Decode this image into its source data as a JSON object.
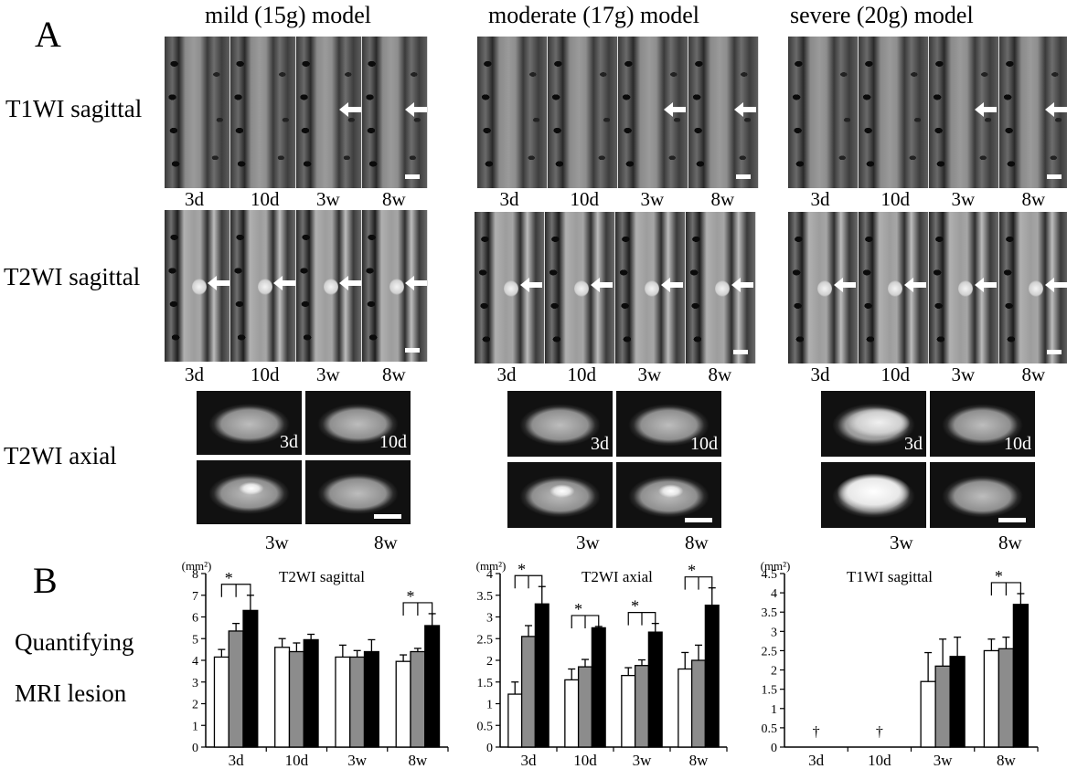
{
  "panel_a_label": "A",
  "panel_b_label": "B",
  "models": [
    {
      "title": "mild (15g) model"
    },
    {
      "title": "moderate (17g) model"
    },
    {
      "title": "severe (20g) model"
    }
  ],
  "row_labels": {
    "t1_sag": "T1WI sagittal",
    "t2_sag": "T2WI sagittal",
    "t2_ax": "T2WI axial"
  },
  "timepoints": [
    "3d",
    "10d",
    "3w",
    "8w"
  ],
  "quant_label_1": "Quantifying",
  "quant_label_2": "MRI lesion",
  "chart_data": [
    {
      "type": "bar",
      "title": "T2WI sagittal",
      "unit": "(mm²)",
      "categories": [
        "3d",
        "10d",
        "3w",
        "8w"
      ],
      "ylim": [
        0,
        8
      ],
      "yticks": [
        0,
        1,
        2,
        3,
        4,
        5,
        6,
        7,
        8
      ],
      "series": [
        {
          "fill": "#ffffff",
          "values": [
            4.15,
            4.6,
            4.15,
            3.95
          ],
          "err": [
            0.35,
            0.4,
            0.55,
            0.3
          ]
        },
        {
          "fill": "#8c8c8c",
          "values": [
            5.35,
            4.4,
            4.15,
            4.4
          ],
          "err": [
            0.35,
            0.4,
            0.3,
            0.15
          ]
        },
        {
          "fill": "#000000",
          "values": [
            6.3,
            4.95,
            4.4,
            5.6
          ],
          "err": [
            0.7,
            0.25,
            0.55,
            0.55
          ]
        }
      ],
      "significance": [
        {
          "category": "3d",
          "mark": "*"
        },
        {
          "category": "8w",
          "mark": "*"
        }
      ]
    },
    {
      "type": "bar",
      "title": "T2WI axial",
      "unit": "(mm²)",
      "categories": [
        "3d",
        "10d",
        "3w",
        "8w"
      ],
      "ylim": [
        0,
        4
      ],
      "yticks": [
        0,
        0.5,
        1,
        1.5,
        2,
        2.5,
        3,
        3.5,
        4
      ],
      "series": [
        {
          "fill": "#ffffff",
          "values": [
            1.22,
            1.55,
            1.65,
            1.8
          ],
          "err": [
            0.28,
            0.25,
            0.18,
            0.38
          ]
        },
        {
          "fill": "#8c8c8c",
          "values": [
            2.55,
            1.85,
            1.88,
            2.0
          ],
          "err": [
            0.25,
            0.17,
            0.13,
            0.35
          ]
        },
        {
          "fill": "#000000",
          "values": [
            3.3,
            2.75,
            2.65,
            3.27
          ],
          "err": [
            0.4,
            0.03,
            0.2,
            0.4
          ]
        }
      ],
      "significance": [
        {
          "category": "3d",
          "mark": "*"
        },
        {
          "category": "10d",
          "mark": "*"
        },
        {
          "category": "3w",
          "mark": "*"
        },
        {
          "category": "8w",
          "mark": "*"
        }
      ]
    },
    {
      "type": "bar",
      "title": "T1WI sagittal",
      "unit": "(mm²)",
      "categories": [
        "3d",
        "10d",
        "3w",
        "8w"
      ],
      "ylim": [
        0,
        4.5
      ],
      "yticks": [
        0,
        0.5,
        1,
        1.5,
        2,
        2.5,
        3,
        3.5,
        4,
        4.5
      ],
      "series": [
        {
          "fill": "#ffffff",
          "values": [
            null,
            null,
            1.7,
            2.5
          ],
          "err": [
            0,
            0,
            0.75,
            0.3
          ]
        },
        {
          "fill": "#8c8c8c",
          "values": [
            null,
            null,
            2.1,
            2.55
          ],
          "err": [
            0,
            0,
            0.7,
            0.3
          ]
        },
        {
          "fill": "#000000",
          "values": [
            null,
            null,
            2.35,
            3.7
          ],
          "err": [
            0,
            0,
            0.5,
            0.28
          ]
        }
      ],
      "dagger_categories": [
        "3d",
        "10d"
      ],
      "dagger_mark": "†",
      "significance": [
        {
          "category": "8w",
          "mark": "*"
        }
      ]
    }
  ]
}
